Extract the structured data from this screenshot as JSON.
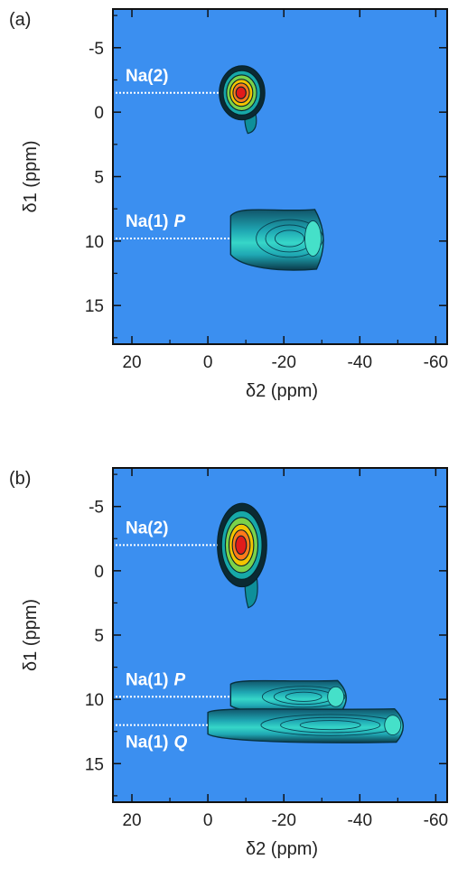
{
  "chart_data": [
    {
      "type": "contour",
      "panel_label": "(a)",
      "xlabel": "δ2 (ppm)",
      "ylabel": "δ1 (ppm)",
      "xlim": [
        25,
        -63
      ],
      "ylim": [
        18,
        -8
      ],
      "x_ticks": [
        20,
        0,
        -20,
        -40,
        -60
      ],
      "y_ticks": [
        -5,
        0,
        5,
        10,
        15
      ],
      "background_color": "#3b8ff0",
      "peaks": [
        {
          "label": "Na(2)",
          "label_italic": "",
          "delta1": -1.5,
          "delta2": -9,
          "width_ppm": 12,
          "height_ppm": 4.2,
          "intensity": 1.0,
          "shape": "blob"
        },
        {
          "label": "Na(1)",
          "label_italic": "P",
          "delta1": 9.8,
          "delta2": -19,
          "x_start": -6,
          "x_end": -31,
          "height_ppm": 5,
          "intensity": 0.5,
          "shape": "band"
        }
      ]
    },
    {
      "type": "contour",
      "panel_label": "(b)",
      "xlabel": "δ2 (ppm)",
      "ylabel": "δ1 (ppm)",
      "xlim": [
        25,
        -63
      ],
      "ylim": [
        18,
        -8
      ],
      "x_ticks": [
        20,
        0,
        -20,
        -40,
        -60
      ],
      "y_ticks": [
        -5,
        0,
        5,
        10,
        15
      ],
      "background_color": "#3b8ff0",
      "peaks": [
        {
          "label": "Na(2)",
          "label_italic": "",
          "delta1": -2,
          "delta2": -9,
          "width_ppm": 13,
          "height_ppm": 6.5,
          "intensity": 1.0,
          "shape": "blob"
        },
        {
          "label": "Na(1)",
          "label_italic": "P",
          "delta1": 9.8,
          "delta2": -16,
          "x_start": -6,
          "x_end": -37,
          "height_ppm": 2.8,
          "intensity": 0.4,
          "shape": "band"
        },
        {
          "label": "Na(1)",
          "label_italic": "Q",
          "delta1": 12,
          "delta2": -26,
          "x_start": 0,
          "x_end": -52,
          "height_ppm": 2.8,
          "intensity": 0.45,
          "shape": "band"
        }
      ]
    }
  ]
}
